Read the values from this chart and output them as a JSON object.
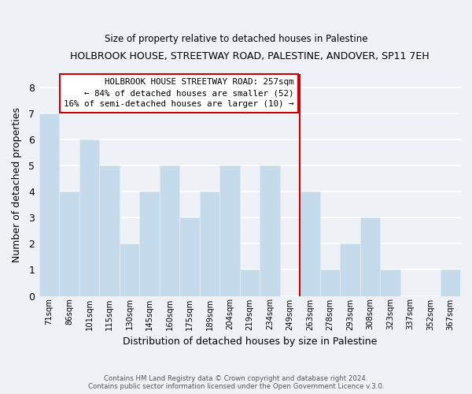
{
  "title": "HOLBROOK HOUSE, STREETWAY ROAD, PALESTINE, ANDOVER, SP11 7EH",
  "subtitle": "Size of property relative to detached houses in Palestine",
  "xlabel": "Distribution of detached houses by size in Palestine",
  "ylabel": "Number of detached properties",
  "bar_color": "#c5daea",
  "bar_edge_color": "#dce9f2",
  "categories": [
    "71sqm",
    "86sqm",
    "101sqm",
    "115sqm",
    "130sqm",
    "145sqm",
    "160sqm",
    "175sqm",
    "189sqm",
    "204sqm",
    "219sqm",
    "234sqm",
    "249sqm",
    "263sqm",
    "278sqm",
    "293sqm",
    "308sqm",
    "323sqm",
    "337sqm",
    "352sqm",
    "367sqm"
  ],
  "values": [
    7,
    4,
    6,
    5,
    2,
    4,
    5,
    3,
    4,
    5,
    1,
    5,
    0,
    4,
    1,
    2,
    3,
    1,
    0,
    0,
    1
  ],
  "ylim": [
    0,
    8.5
  ],
  "yticks": [
    0,
    1,
    2,
    3,
    4,
    5,
    6,
    7,
    8
  ],
  "property_line_idx": 13,
  "property_line_color": "#cc0000",
  "annotation_text_line1": "HOLBROOK HOUSE STREETWAY ROAD: 257sqm",
  "annotation_text_line2": "← 84% of detached houses are smaller (52)",
  "annotation_text_line3": "16% of semi-detached houses are larger (10) →",
  "footer_line1": "Contains HM Land Registry data © Crown copyright and database right 2024.",
  "footer_line2": "Contains public sector information licensed under the Open Government Licence v.3.0.",
  "background_color": "#eef2f7",
  "grid_color": "#ffffff",
  "annotation_box_color": "#ffffff",
  "annotation_box_edge_color": "#cc0000"
}
